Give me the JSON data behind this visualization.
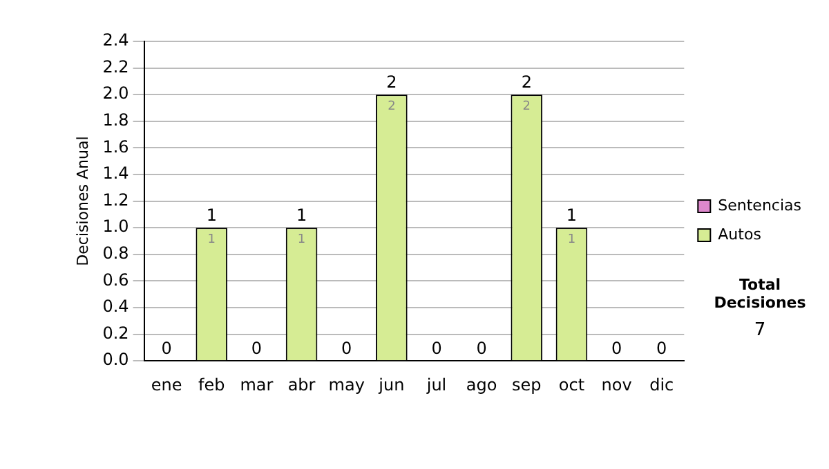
{
  "chart_data": {
    "type": "bar",
    "stacked": true,
    "ylabel": "Decisiones Anual",
    "categories": [
      "ene",
      "feb",
      "mar",
      "abr",
      "may",
      "jun",
      "jul",
      "ago",
      "sep",
      "oct",
      "nov",
      "dic"
    ],
    "series": [
      {
        "name": "Sentencias",
        "color": "#dd88cc",
        "values": [
          0,
          0,
          0,
          0,
          0,
          0,
          0,
          0,
          0,
          0,
          0,
          0
        ]
      },
      {
        "name": "Autos",
        "color": "#d6ec94",
        "values": [
          0,
          1,
          0,
          1,
          0,
          2,
          0,
          0,
          2,
          1,
          0,
          0
        ],
        "value_labels": [
          null,
          "1",
          null,
          "1",
          null,
          "2",
          null,
          null,
          "2",
          "1",
          null,
          null
        ]
      }
    ],
    "totals": [
      "0",
      "1",
      "0",
      "1",
      "0",
      "2",
      "0",
      "0",
      "2",
      "1",
      "0",
      "0"
    ],
    "ylim": [
      0,
      2.4
    ],
    "yticks": [
      {
        "value": 0,
        "label": "0.0"
      },
      0.2,
      0.4,
      0.6,
      0.8,
      {
        "value": 1,
        "label": "1.0"
      },
      1.2,
      1.4,
      1.6,
      1.8,
      {
        "value": 2,
        "label": "2.0"
      },
      2.2,
      2.4
    ],
    "grid": "y",
    "legend": "right",
    "annotations": [
      "Total Decisiones",
      "7"
    ]
  }
}
